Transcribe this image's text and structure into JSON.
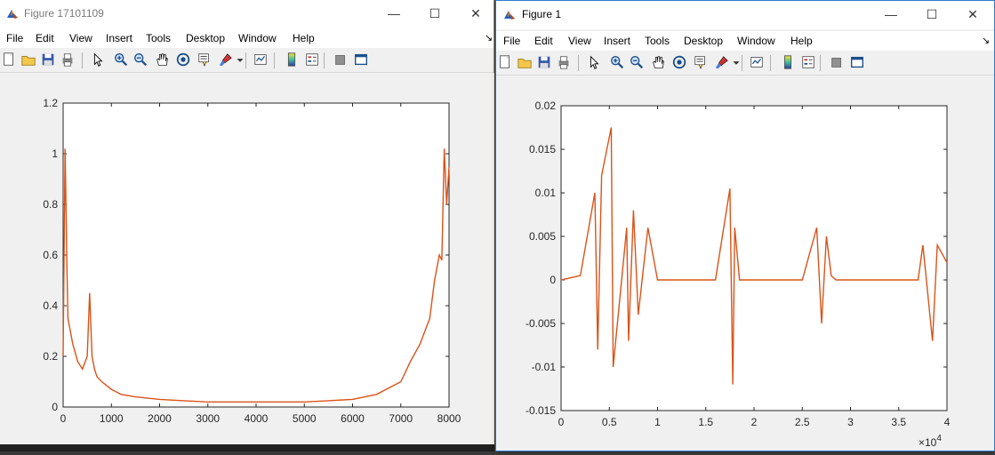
{
  "win1": {
    "title": "Figure 17101109",
    "menu": [
      "File",
      "Edit",
      "View",
      "Insert",
      "Tools",
      "Desktop",
      "Window",
      "Help"
    ],
    "menu_arrow": "↘",
    "toolbar_icons": [
      "new-figure-icon",
      "open-file-icon",
      "save-icon",
      "print-icon",
      "pointer-icon",
      "zoom-in-icon",
      "zoom-out-icon",
      "pan-icon",
      "rotate-3d-icon",
      "data-cursor-icon",
      "brush-icon",
      "brush-dropdown-icon",
      "link-plot-icon",
      "insert-colorbar-icon",
      "insert-legend-icon",
      "hide-plot-tools-icon",
      "show-plot-tools-icon"
    ]
  },
  "win2": {
    "title": "Figure 1",
    "menu": [
      "File",
      "Edit",
      "View",
      "Insert",
      "Tools",
      "Desktop",
      "Window",
      "Help"
    ],
    "menu_arrow": "↘",
    "toolbar_icons": [
      "new-figure-icon",
      "open-file-icon",
      "save-icon",
      "print-icon",
      "pointer-icon",
      "zoom-in-icon",
      "zoom-out-icon",
      "pan-icon",
      "rotate-3d-icon",
      "data-cursor-icon",
      "brush-icon",
      "brush-dropdown-icon",
      "link-plot-icon",
      "insert-colorbar-icon",
      "insert-legend-icon",
      "hide-plot-tools-icon",
      "show-plot-tools-icon"
    ]
  },
  "window_controls": {
    "minimize": "—",
    "maximize": "☐",
    "close": "✕"
  },
  "colors": {
    "line": "#d95319",
    "accent": "#2f7bd1"
  },
  "chart_data": [
    {
      "type": "line",
      "xlim": [
        0,
        8000
      ],
      "ylim": [
        0,
        1.2
      ],
      "xticks": [
        "0",
        "1000",
        "2000",
        "3000",
        "4000",
        "5000",
        "6000",
        "7000",
        "8000"
      ],
      "yticks": [
        "0",
        "0.2",
        "0.4",
        "0.6",
        "0.8",
        "1",
        "1.2"
      ],
      "series": [
        {
          "color": "#d95319",
          "x": [
            0,
            40,
            80,
            100,
            150,
            200,
            300,
            400,
            500,
            550,
            600,
            650,
            700,
            800,
            1000,
            1200,
            1500,
            2000,
            2500,
            3000,
            3500,
            4000,
            4500,
            5000,
            5500,
            6000,
            6500,
            7000,
            7200,
            7400,
            7600,
            7700,
            7800,
            7850,
            7900,
            7950,
            8000
          ],
          "y": [
            0.2,
            1.02,
            0.55,
            0.35,
            0.3,
            0.25,
            0.18,
            0.15,
            0.2,
            0.45,
            0.2,
            0.15,
            0.12,
            0.1,
            0.07,
            0.05,
            0.04,
            0.03,
            0.025,
            0.02,
            0.02,
            0.02,
            0.02,
            0.02,
            0.025,
            0.03,
            0.05,
            0.1,
            0.18,
            0.25,
            0.35,
            0.5,
            0.6,
            0.58,
            1.02,
            0.8,
            0.95
          ]
        }
      ]
    },
    {
      "type": "line",
      "xlim": [
        0,
        40000
      ],
      "ylim": [
        -0.015,
        0.02
      ],
      "xticks": [
        "0",
        "0.5",
        "1",
        "1.5",
        "2",
        "2.5",
        "3",
        "3.5",
        "4"
      ],
      "yticks": [
        "-0.015",
        "-0.01",
        "-0.005",
        "0",
        "0.005",
        "0.01",
        "0.015",
        "0.02"
      ],
      "x_exponent_label": "×10",
      "x_exponent_power": "4",
      "series": [
        {
          "color": "#d95319",
          "x": [
            0,
            2000,
            3500,
            3800,
            4200,
            5200,
            5400,
            6800,
            7000,
            7500,
            8000,
            9000,
            10000,
            12000,
            15000,
            16000,
            17500,
            17800,
            18000,
            18500,
            20000,
            22000,
            25000,
            26500,
            27000,
            27500,
            28000,
            28500,
            29000,
            30000,
            33000,
            37000,
            37500,
            38500,
            39000,
            40000
          ],
          "y": [
            0.0,
            0.0005,
            0.01,
            -0.008,
            0.012,
            0.0175,
            -0.01,
            0.006,
            -0.007,
            0.008,
            -0.004,
            0.006,
            0.0,
            0.0,
            0.0,
            0.0,
            0.0105,
            -0.012,
            0.006,
            0.0,
            0.0,
            0.0,
            0.0,
            0.006,
            -0.005,
            0.005,
            0.0005,
            0.0,
            0.0,
            0.0,
            0.0,
            0.0,
            0.004,
            -0.007,
            0.004,
            0.002
          ]
        }
      ]
    }
  ]
}
